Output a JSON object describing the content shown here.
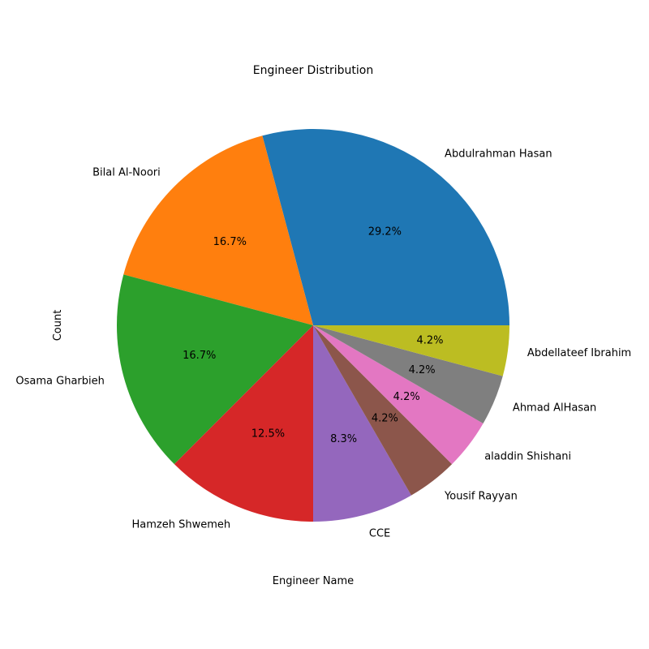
{
  "chart_data": {
    "type": "pie",
    "title": "Engineer Distribution",
    "xlabel": "Engineer Name",
    "ylabel": "Count",
    "categories": [
      "Abdulrahman Hasan",
      "Bilal Al-Noori",
      "Osama Gharbieh",
      "Hamzeh Shwemeh",
      "CCE",
      "Yousif Rayyan",
      "aladdin Shishani",
      "Ahmad AlHasan",
      "Abdellateef Ibrahim"
    ],
    "values": [
      7,
      4,
      4,
      3,
      2,
      1,
      1,
      1,
      1
    ],
    "percent_labels": [
      "29.2%",
      "16.7%",
      "16.7%",
      "12.5%",
      "8.3%",
      "4.2%",
      "4.2%",
      "4.2%",
      "4.2%"
    ],
    "colors": [
      "#1f77b4",
      "#ff7f0e",
      "#2ca02c",
      "#d62728",
      "#9467bd",
      "#8c564b",
      "#e377c2",
      "#7f7f7f",
      "#bcbd22"
    ],
    "start_angle_deg": 0,
    "direction": "counterclockwise",
    "grid": false,
    "legend": "none"
  }
}
